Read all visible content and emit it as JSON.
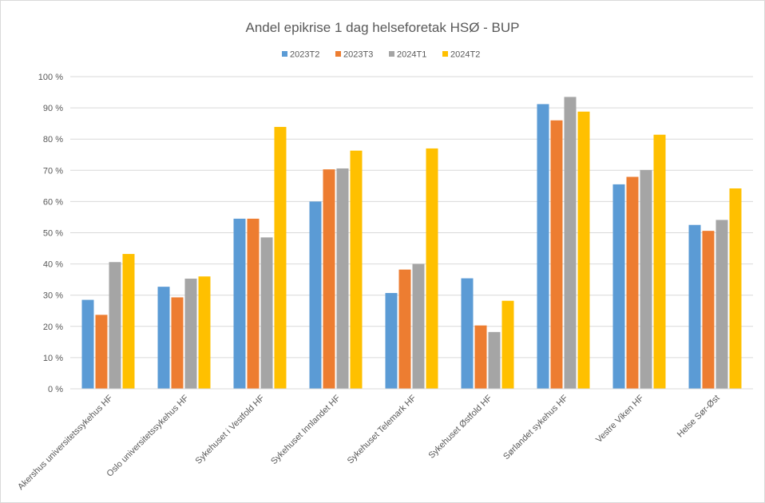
{
  "chart_data": {
    "type": "bar",
    "title": "Andel epikrise 1 dag helseforetak HSØ - BUP",
    "xlabel": "",
    "ylabel": "",
    "ylim": [
      0,
      100
    ],
    "yticks": [
      0,
      10,
      20,
      30,
      40,
      50,
      60,
      70,
      80,
      90,
      100
    ],
    "ytick_labels": [
      "0 %",
      "10 %",
      "20 %",
      "30 %",
      "40 %",
      "50 %",
      "60 %",
      "70 %",
      "80 %",
      "90 %",
      "100 %"
    ],
    "grid": true,
    "legend_position": "top",
    "categories": [
      "Akershus universitetssykehus HF",
      "Oslo universitetssykehus HF",
      "Sykehuset i Vestfold HF",
      "Sykehuset Innlandet HF",
      "Sykehuset Telemark HF",
      "Sykehuset Østfold HF",
      "Sørlandet sykehus HF",
      "Vestre Viken HF",
      "Helse Sør-Øst"
    ],
    "series": [
      {
        "name": "2023T2",
        "color": "#5b9bd5",
        "values": [
          28.5,
          32.7,
          54.5,
          60.0,
          30.7,
          35.4,
          91.2,
          65.5,
          52.5
        ]
      },
      {
        "name": "2023T3",
        "color": "#ed7d31",
        "values": [
          23.7,
          29.3,
          54.5,
          70.3,
          38.2,
          20.3,
          86.0,
          67.9,
          50.6
        ]
      },
      {
        "name": "2024T1",
        "color": "#a5a5a5",
        "values": [
          40.6,
          35.3,
          48.5,
          70.6,
          40.0,
          18.2,
          93.5,
          70.1,
          54.1
        ]
      },
      {
        "name": "2024T2",
        "color": "#ffc000",
        "values": [
          43.2,
          36.0,
          83.9,
          76.3,
          77.0,
          28.2,
          88.8,
          81.4,
          64.2
        ]
      }
    ]
  }
}
